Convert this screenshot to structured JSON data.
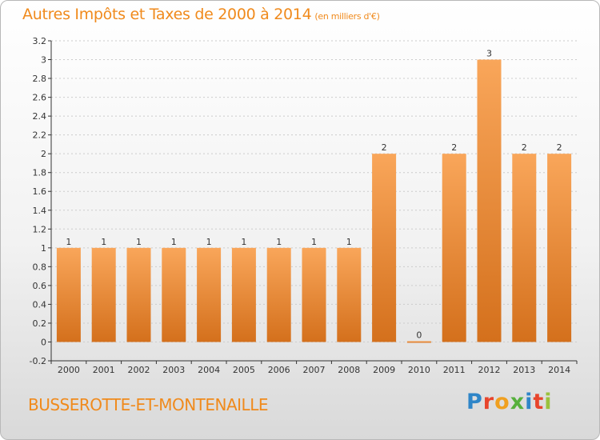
{
  "header": {
    "title": "Autres Impôts et Taxes de 2000 à 2014",
    "unit": "(en milliers d'€)"
  },
  "footer": {
    "commune": "BUSSEROTTE-ET-MONTENAILLE",
    "logo": "Proxiti",
    "logo_colors": [
      "#2f86c8",
      "#e8452c",
      "#f0a020",
      "#56b03c",
      "#2f86c8",
      "#e8452c",
      "#9ac23c"
    ]
  },
  "colors": {
    "bar_top": "#f9a65a",
    "bar_bottom": "#d4701c",
    "title": "#f08a1c",
    "axis": "#333333",
    "grid": "#cccccc"
  },
  "chart_data": {
    "type": "bar",
    "title": "Autres Impôts et Taxes de 2000 à 2014",
    "categories": [
      "2000",
      "2001",
      "2002",
      "2003",
      "2004",
      "2005",
      "2006",
      "2007",
      "2008",
      "2009",
      "2010",
      "2011",
      "2012",
      "2013",
      "2014"
    ],
    "values": [
      1,
      1,
      1,
      1,
      1,
      1,
      1,
      1,
      1,
      2,
      0,
      2,
      3,
      2,
      2
    ],
    "data_labels": [
      "1",
      "1",
      "1",
      "1",
      "1",
      "1",
      "1",
      "1",
      "1",
      "2",
      "0",
      "2",
      "3",
      "2",
      "2"
    ],
    "yticks": [
      "-0.2",
      "0",
      "0.2",
      "0.4",
      "0.6",
      "0.8",
      "1",
      "1.2",
      "1.4",
      "1.6",
      "1.8",
      "2",
      "2.2",
      "2.4",
      "2.6",
      "2.8",
      "3",
      "3.2"
    ],
    "ylim": [
      -0.2,
      3.2
    ],
    "grid": "horizontal dashed",
    "legend": "none"
  }
}
